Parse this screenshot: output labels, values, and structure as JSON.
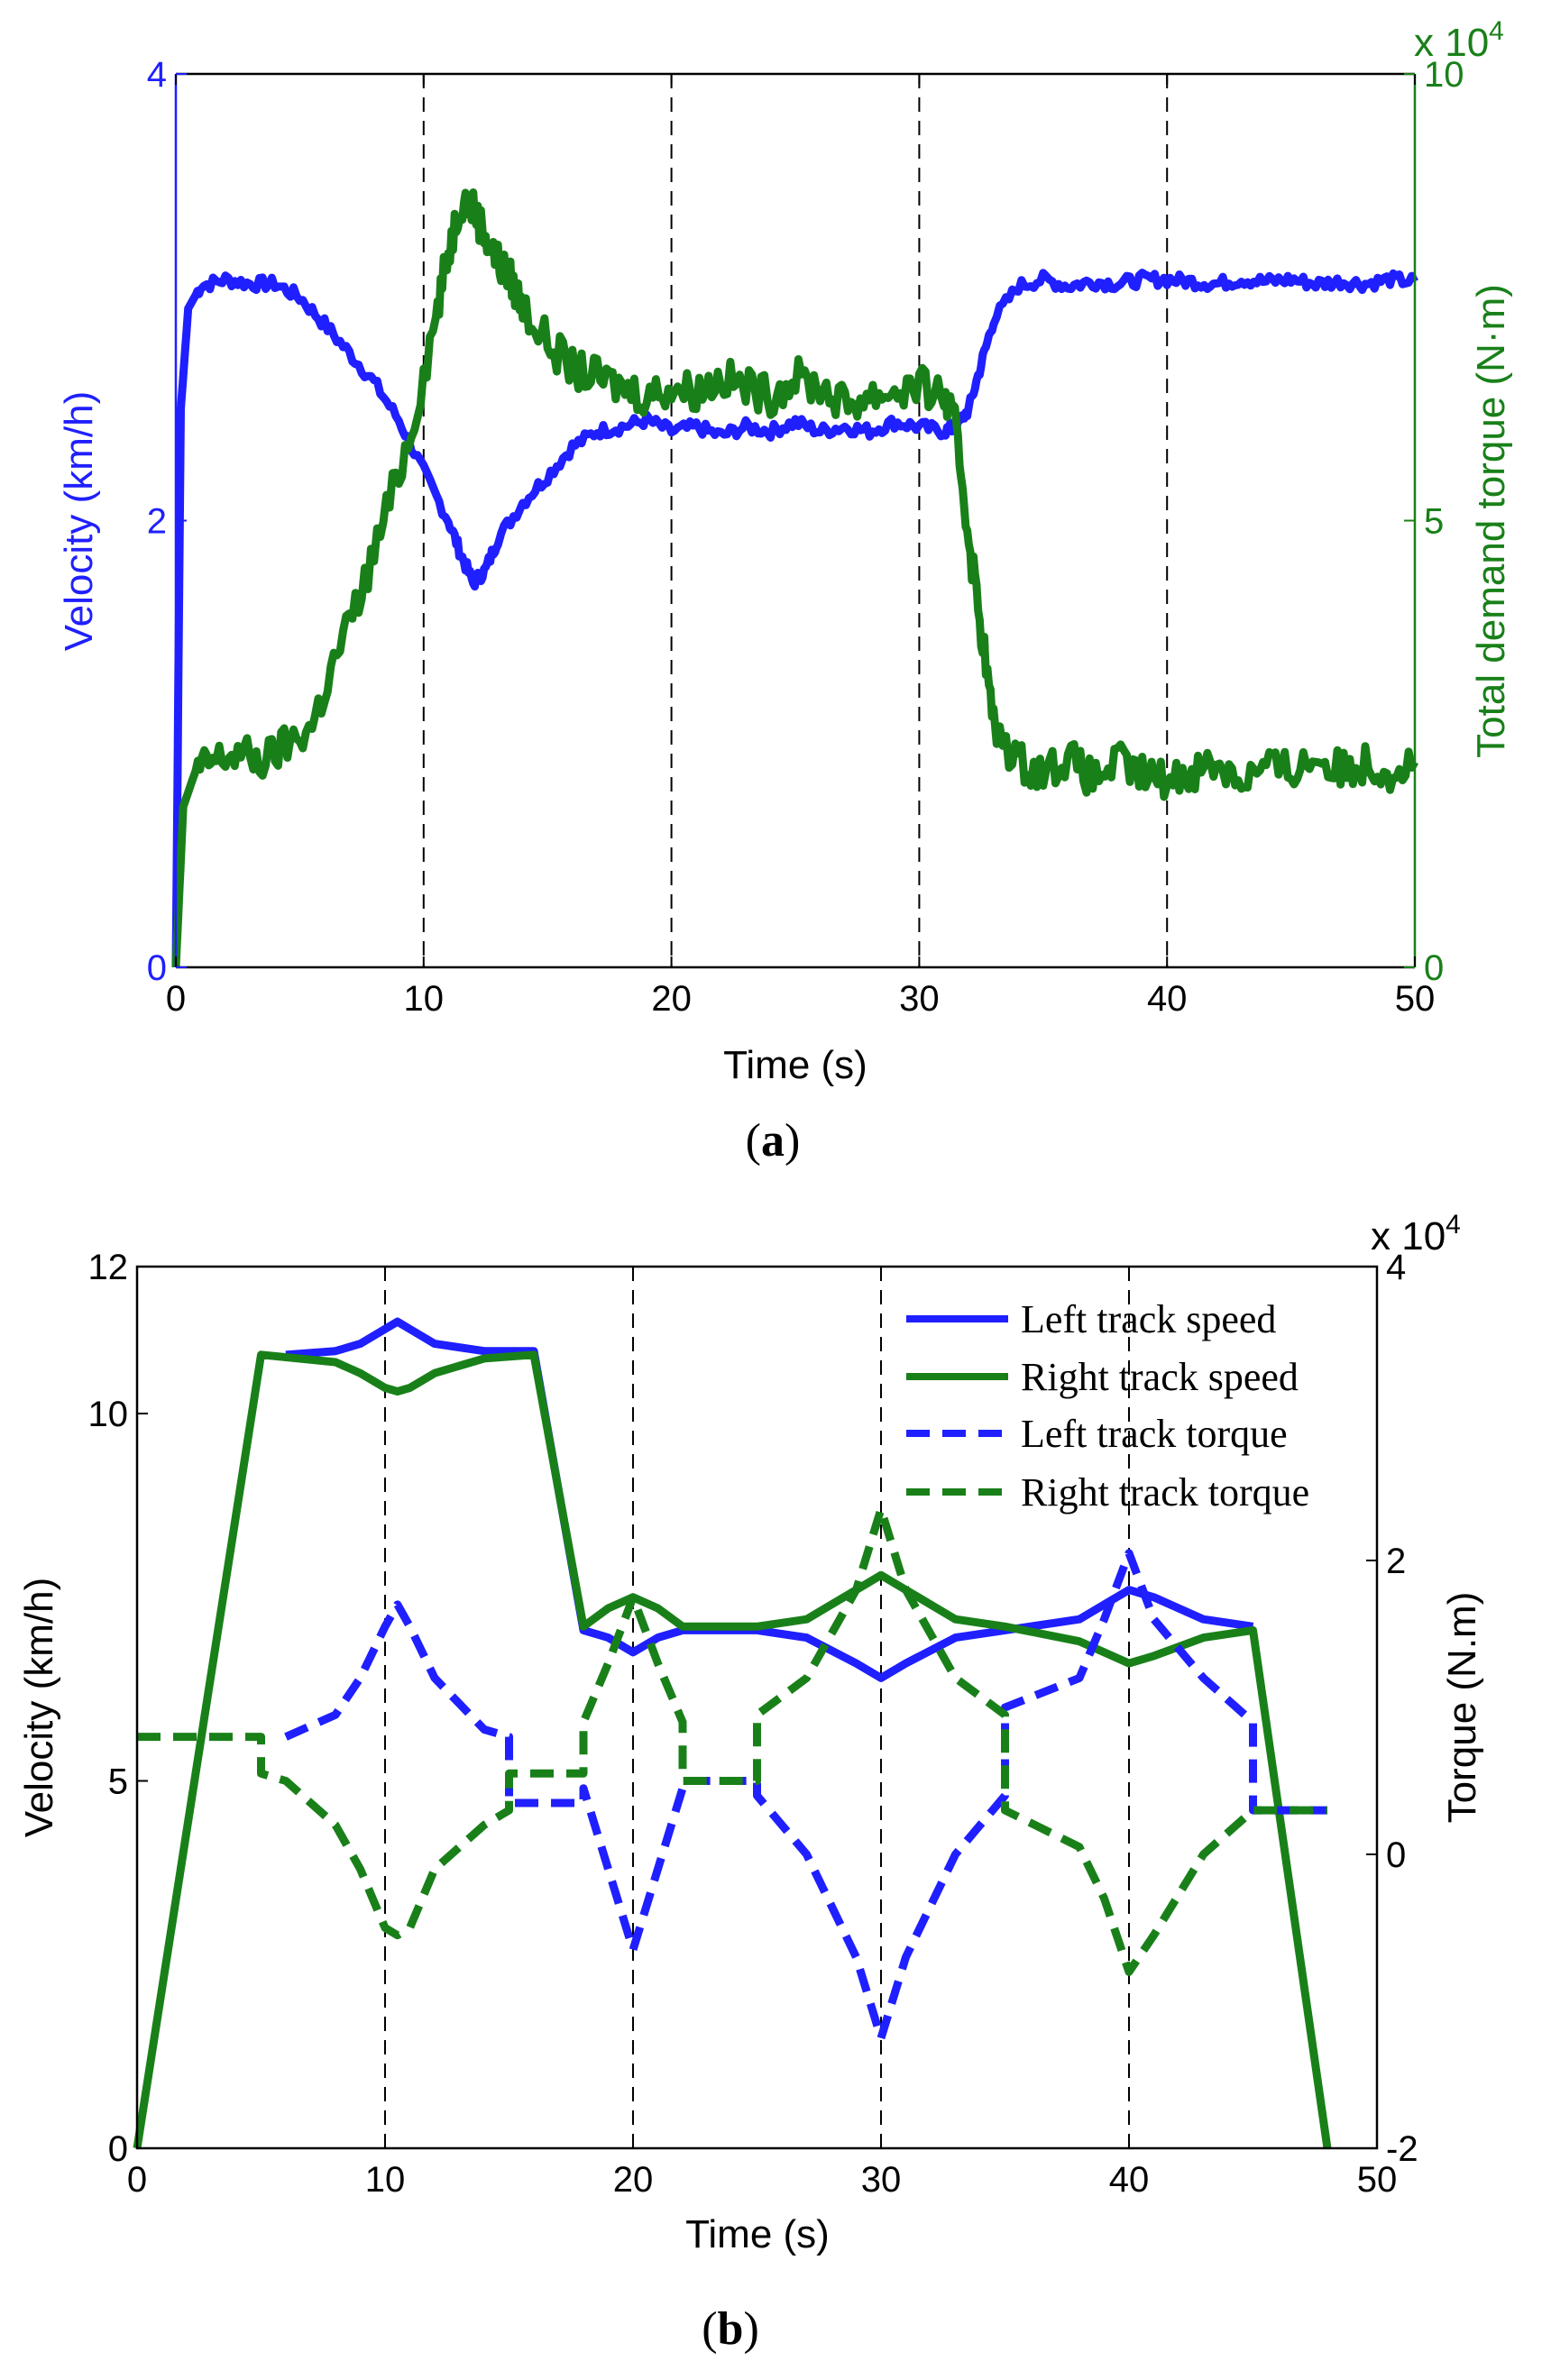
{
  "chart_data": [
    {
      "type": "line",
      "panel_label": "a",
      "xlabel": "Time (s)",
      "ylabel_left": "Velocity (km/h)",
      "ylabel_right": "Total demand torque (N·m)",
      "right_multiplier_base": "x 10",
      "right_multiplier_exp": "4",
      "xlim": [
        0,
        50
      ],
      "ylim_left": [
        0,
        4
      ],
      "ylim_right": [
        0,
        10
      ],
      "x_ticks": [
        "0",
        "10",
        "20",
        "30",
        "40",
        "50"
      ],
      "y_ticks_left": [
        "0",
        "2",
        "4"
      ],
      "y_ticks_right": [
        "0",
        "5",
        "10"
      ],
      "vlines": [
        10,
        20,
        30,
        40
      ],
      "colors": {
        "left": "#1f1fff",
        "right": "#198019"
      },
      "series": [
        {
          "name": "Velocity",
          "axis": "left",
          "color": "#1f1fff",
          "x": [
            0,
            0.2,
            0.5,
            1,
            2,
            3,
            4,
            5,
            6,
            7,
            8,
            9,
            10,
            11,
            11.5,
            12,
            12.5,
            13,
            14,
            15,
            16,
            17,
            18,
            19,
            20,
            21,
            22,
            23,
            24,
            25,
            26,
            27,
            28,
            29,
            30,
            31,
            31.5,
            32,
            32.5,
            33,
            34,
            35,
            36,
            37,
            38,
            39,
            40,
            41,
            42,
            43,
            44,
            45,
            46,
            47,
            48,
            49,
            50
          ],
          "y": [
            0,
            2.5,
            2.95,
            3.05,
            3.08,
            3.06,
            3.06,
            3.0,
            2.88,
            2.75,
            2.62,
            2.45,
            2.22,
            2.0,
            1.85,
            1.72,
            1.78,
            1.92,
            2.08,
            2.2,
            2.33,
            2.4,
            2.42,
            2.45,
            2.4,
            2.42,
            2.38,
            2.42,
            2.4,
            2.44,
            2.4,
            2.42,
            2.4,
            2.44,
            2.42,
            2.4,
            2.42,
            2.5,
            2.7,
            2.9,
            3.05,
            3.08,
            3.05,
            3.07,
            3.06,
            3.08,
            3.08,
            3.07,
            3.06,
            3.08,
            3.07,
            3.08,
            3.06,
            3.07,
            3.06,
            3.08,
            3.07
          ]
        },
        {
          "name": "Total demand torque",
          "axis": "right",
          "color": "#198019",
          "x": [
            0,
            0.3,
            0.8,
            1.5,
            2.5,
            3.5,
            4.5,
            5.5,
            6.5,
            7.5,
            8.5,
            9.5,
            10.5,
            11,
            11.5,
            12,
            12.5,
            13,
            13.5,
            14,
            15,
            16,
            17,
            18,
            19,
            20,
            21,
            22,
            23,
            24,
            25,
            26,
            27,
            28,
            29,
            30,
            31,
            31.5,
            32,
            32.5,
            33,
            34,
            35,
            36,
            37,
            38,
            39,
            40,
            41,
            42,
            43,
            44,
            45,
            46,
            47,
            48,
            49,
            50
          ],
          "y": [
            0,
            1.8,
            2.2,
            2.3,
            2.4,
            2.3,
            2.5,
            2.7,
            3.5,
            4.2,
            5.1,
            6.0,
            7.3,
            8.0,
            8.6,
            8.5,
            8.2,
            7.9,
            7.7,
            7.4,
            7.0,
            6.7,
            6.6,
            6.5,
            6.4,
            6.5,
            6.45,
            6.6,
            6.5,
            6.4,
            6.6,
            6.5,
            6.3,
            6.4,
            6.45,
            6.5,
            6.4,
            6.0,
            4.8,
            3.8,
            2.7,
            2.3,
            2.2,
            2.35,
            2.1,
            2.3,
            2.15,
            2.1,
            2.2,
            2.3,
            2.1,
            2.25,
            2.2,
            2.35,
            2.2,
            2.3,
            2.2,
            2.3
          ]
        }
      ]
    },
    {
      "type": "line",
      "panel_label": "b",
      "xlabel": "Time (s)",
      "ylabel_left": "Velocity (km/h)",
      "ylabel_right": "Torque (N.m)",
      "right_multiplier_base": "x 10",
      "right_multiplier_exp": "4",
      "xlim": [
        0,
        50
      ],
      "ylim_left": [
        0,
        12
      ],
      "ylim_right": [
        -2,
        4
      ],
      "x_ticks": [
        "0",
        "10",
        "20",
        "30",
        "40",
        "50"
      ],
      "y_ticks_left": [
        "0",
        "5",
        "10",
        "12"
      ],
      "y_ticks_right": [
        "-2",
        "0",
        "2",
        "4"
      ],
      "vlines": [
        10,
        20,
        30,
        40
      ],
      "legend": [
        "Left  track speed",
        "Right track speed",
        "Left track torque",
        "Right track torque"
      ],
      "legend_position": "top-right",
      "series": [
        {
          "name": "Left  track speed",
          "axis": "left",
          "color": "#1f1fff",
          "style": "solid",
          "x": [
            6,
            8,
            9,
            10,
            10.5,
            11,
            12,
            14,
            16,
            18,
            19,
            20,
            21,
            22,
            25,
            27,
            29,
            30,
            31,
            33,
            35,
            38,
            39,
            40,
            41,
            43,
            45
          ],
          "y": [
            10.8,
            10.85,
            10.95,
            11.15,
            11.25,
            11.15,
            10.95,
            10.85,
            10.85,
            7.05,
            6.95,
            6.75,
            6.95,
            7.05,
            7.05,
            6.95,
            6.6,
            6.4,
            6.6,
            6.95,
            7.05,
            7.2,
            7.4,
            7.6,
            7.5,
            7.2,
            7.1
          ]
        },
        {
          "name": "Right track speed",
          "axis": "left",
          "color": "#198019",
          "style": "solid",
          "x": [
            0,
            5,
            8,
            9,
            10,
            10.5,
            11,
            12,
            14,
            16,
            18,
            19,
            20,
            21,
            22,
            25,
            27,
            29,
            30,
            31,
            33,
            35,
            38,
            39,
            40,
            41,
            43,
            45,
            48
          ],
          "y": [
            0,
            10.8,
            10.7,
            10.55,
            10.35,
            10.3,
            10.35,
            10.55,
            10.75,
            10.8,
            7.1,
            7.35,
            7.5,
            7.35,
            7.1,
            7.1,
            7.2,
            7.6,
            7.8,
            7.6,
            7.2,
            7.1,
            6.9,
            6.75,
            6.6,
            6.7,
            6.95,
            7.05,
            0
          ]
        },
        {
          "name": "Left track torque",
          "axis": "right",
          "color": "#1f1fff",
          "style": "dashed",
          "x": [
            6,
            8,
            9,
            10,
            10.5,
            11,
            12,
            14,
            15,
            15,
            18,
            18,
            19,
            20,
            21,
            22,
            22,
            25,
            25,
            27,
            29,
            30,
            31,
            33,
            35,
            35,
            38,
            39,
            40,
            41,
            43,
            45,
            45,
            48
          ],
          "y": [
            0.8,
            0.95,
            1.2,
            1.55,
            1.7,
            1.55,
            1.2,
            0.85,
            0.8,
            0.35,
            0.35,
            0.45,
            -0.1,
            -0.65,
            -0.1,
            0.45,
            0.5,
            0.5,
            0.4,
            0.0,
            -0.7,
            -1.25,
            -0.7,
            0.0,
            0.4,
            1.0,
            1.2,
            1.6,
            2.05,
            1.6,
            1.2,
            0.9,
            0.3,
            0.3
          ]
        },
        {
          "name": "Right track torque",
          "axis": "right",
          "color": "#198019",
          "style": "dashed",
          "x": [
            0,
            5,
            5,
            6,
            8,
            9,
            10,
            10.5,
            11,
            12,
            14,
            15,
            15,
            18,
            18,
            19,
            20,
            21,
            22,
            22,
            25,
            25,
            27,
            29,
            30,
            31,
            33,
            35,
            35,
            38,
            39,
            40,
            41,
            43,
            45,
            45,
            48
          ],
          "y": [
            0.8,
            0.8,
            0.55,
            0.5,
            0.2,
            -0.1,
            -0.5,
            -0.55,
            -0.5,
            -0.1,
            0.2,
            0.3,
            0.55,
            0.55,
            0.9,
            1.3,
            1.75,
            1.3,
            0.9,
            0.5,
            0.5,
            0.95,
            1.2,
            1.8,
            2.35,
            1.8,
            1.2,
            0.95,
            0.3,
            0.05,
            -0.3,
            -0.8,
            -0.55,
            0.0,
            0.3,
            0.3,
            0.3
          ]
        }
      ]
    }
  ]
}
